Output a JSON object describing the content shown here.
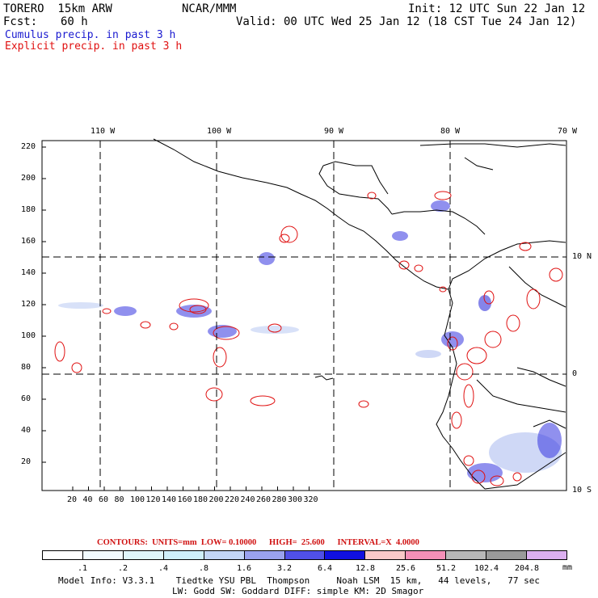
{
  "header": {
    "model": "TORERO  15km ARW",
    "center": "NCAR/MMM",
    "init": "Init: 12 UTC Sun 22 Jan 12",
    "fcst_label": "Fcst:",
    "fcst_value": "60 h",
    "valid": "Valid: 00 UTC Wed 25 Jan 12 (18 CST Tue 24 Jan 12)"
  },
  "legend": {
    "cumulus": "Cumulus precip. in past 3 h",
    "explicit": "Explicit precip. in past 3 h"
  },
  "map": {
    "lon_labels": [
      "110 W",
      "100 W",
      "90 W",
      "80 W",
      "70 W"
    ],
    "lat_labels": [
      "10 N",
      "0",
      "10 S"
    ],
    "y_ticks": [
      "220",
      "200",
      "180",
      "160",
      "140",
      "120",
      "100",
      "80",
      "60",
      "40",
      "20"
    ],
    "x_ticks": [
      "20",
      "40",
      "60",
      "80",
      "100",
      "120",
      "140",
      "160",
      "180",
      "200",
      "220",
      "240",
      "260",
      "280",
      "300",
      "320"
    ],
    "cumulus_color": "#3030e0",
    "explicit_color": "#e01010",
    "coast_color": "#000000"
  },
  "colorbar": {
    "title": "CONTOURS:  UNITS=mm  LOW= 0.10000      HIGH=  25.600      INTERVAL=X  4.0000",
    "labels": [
      ".1",
      ".2",
      ".4",
      ".8",
      "1.6",
      "3.2",
      "6.4",
      "12.8",
      "25.6",
      "51.2",
      "102.4",
      "204.8"
    ],
    "units": "mm",
    "colors": [
      "#ffffff",
      "#f2fbff",
      "#dff6fb",
      "#cfeffa",
      "#c3d6f6",
      "#9aa2ee",
      "#5050e6",
      "#1010e0",
      "#f9c8c8",
      "#f590b8",
      "#b8b8b8",
      "#9a9a9a",
      "#dcb0f0"
    ]
  },
  "footer": {
    "line1": "Model Info: V3.3.1    Tiedtke YSU PBL  Thompson     Noah LSM  15 km,   44 levels,   77 sec",
    "line2": "LW: Godd SW: Goddard DIFF: simple KM: 2D Smagor"
  }
}
